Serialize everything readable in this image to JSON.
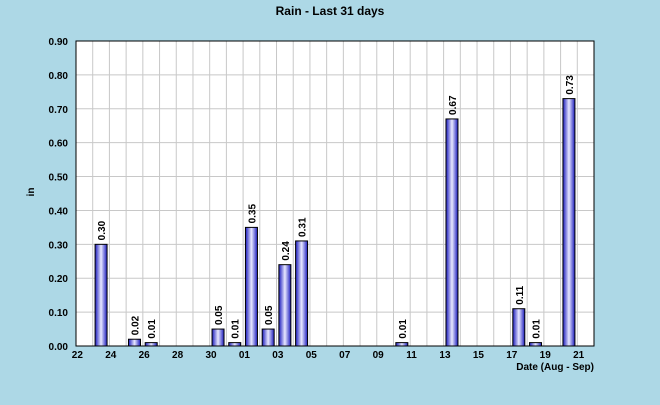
{
  "chart_data": {
    "type": "bar",
    "title": "Rain  - Last 31 days",
    "xlabel": "Date (Aug - Sep)",
    "ylabel": "in",
    "ylim": [
      0,
      0.9
    ],
    "y_ticks": [
      "0.00",
      "0.10",
      "0.20",
      "0.30",
      "0.40",
      "0.50",
      "0.60",
      "0.70",
      "0.80",
      "0.90"
    ],
    "categories": [
      "22",
      "23",
      "24",
      "25",
      "26",
      "27",
      "28",
      "29",
      "30",
      "31",
      "01",
      "02",
      "03",
      "04",
      "05",
      "06",
      "07",
      "08",
      "09",
      "10",
      "11",
      "12",
      "13",
      "14",
      "15",
      "16",
      "17",
      "18",
      "19",
      "20",
      "21"
    ],
    "x_tick_labels": [
      "22",
      "24",
      "26",
      "28",
      "30",
      "01",
      "03",
      "05",
      "07",
      "09",
      "11",
      "13",
      "15",
      "17",
      "19",
      "21"
    ],
    "values": [
      0,
      0.3,
      0,
      0.02,
      0.01,
      0,
      0,
      0,
      0.05,
      0.01,
      0.35,
      0.05,
      0.24,
      0.31,
      0,
      0,
      0,
      0,
      0,
      0.01,
      0,
      0,
      0.67,
      0,
      0,
      0,
      0.11,
      0.01,
      0,
      0.73,
      0
    ],
    "data_labels": [
      "",
      "0.30",
      "",
      "0.02",
      "0.01",
      "",
      "",
      "",
      "0.05",
      "0.01",
      "0.35",
      "0.05",
      "0.24",
      "0.31",
      "",
      "",
      "",
      "",
      "",
      "0.01",
      "",
      "",
      "0.67",
      "",
      "",
      "",
      "0.11",
      "0.01",
      "",
      "0.73",
      ""
    ],
    "grid": true,
    "colors": {
      "background": "#ADD8E6",
      "plot_background": "#FFFFFF",
      "grid": "#C8C8C8",
      "bar_fill_dark": "#1A1ABE",
      "bar_fill_light": "#E8E8FF",
      "bar_outline": "#000000"
    }
  }
}
